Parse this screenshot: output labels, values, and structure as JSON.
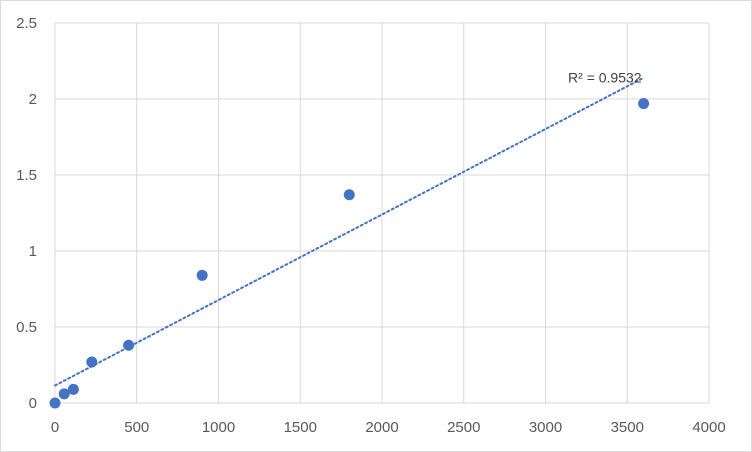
{
  "chart_data": {
    "type": "scatter",
    "title": "",
    "xlabel": "",
    "ylabel": "",
    "xlim": [
      0,
      4000
    ],
    "ylim": [
      0,
      2.5
    ],
    "x_ticks": [
      0,
      500,
      1000,
      1500,
      2000,
      2500,
      3000,
      3500,
      4000
    ],
    "y_ticks": [
      0,
      0.5,
      1,
      1.5,
      2,
      2.5
    ],
    "x_tick_labels": [
      "0",
      "500",
      "1000",
      "1500",
      "2000",
      "2500",
      "3000",
      "3500",
      "4000"
    ],
    "y_tick_labels": [
      "0",
      "0.5",
      "1",
      "1.5",
      "2",
      "2.5"
    ],
    "grid": true,
    "legend": "none",
    "series": [
      {
        "points": [
          {
            "x": 0,
            "y": 0.0
          },
          {
            "x": 56.25,
            "y": 0.06
          },
          {
            "x": 112.5,
            "y": 0.09
          },
          {
            "x": 225,
            "y": 0.27
          },
          {
            "x": 450,
            "y": 0.38
          },
          {
            "x": 900,
            "y": 0.84
          },
          {
            "x": 1800,
            "y": 1.37
          },
          {
            "x": 3600,
            "y": 1.97
          }
        ],
        "color": "#4472c4"
      }
    ],
    "trendline": {
      "type": "linear",
      "style": "dotted",
      "color": "#4472c4",
      "from": {
        "x": 0,
        "y": 0.115
      },
      "to": {
        "x": 3600,
        "y": 2.14
      },
      "label": "R² = 0.9532"
    },
    "colors": {
      "grid": "#d9d9d9",
      "tick_text": "#595959",
      "frame": "#d9d9d9"
    }
  }
}
